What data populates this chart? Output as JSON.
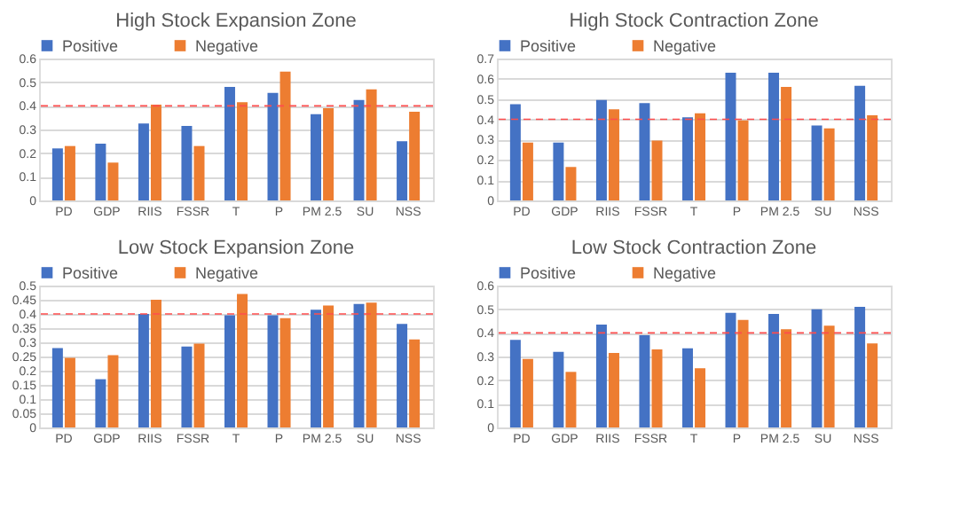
{
  "chart_data": [
    {
      "type": "bar",
      "title": "High Stock Expansion Zone",
      "categories": [
        "PD",
        "GDP",
        "RIIS",
        "FSSR",
        "T",
        "P",
        "PM 2.5",
        "SU",
        "NSS"
      ],
      "series": [
        {
          "name": "Positive",
          "color": "#4472c4",
          "values": [
            0.22,
            0.24,
            0.325,
            0.315,
            0.48,
            0.455,
            0.365,
            0.425,
            0.25
          ]
        },
        {
          "name": "Negative",
          "color": "#ed7d31",
          "values": [
            0.23,
            0.16,
            0.405,
            0.23,
            0.415,
            0.545,
            0.39,
            0.47,
            0.375
          ]
        }
      ],
      "ylim": [
        0,
        0.6
      ],
      "yticks": [
        0,
        0.1,
        0.2,
        0.3,
        0.4,
        0.5,
        0.6
      ],
      "grid": "y",
      "legend": "top",
      "ref_lines": [
        {
          "axis": "y",
          "value": 0.4,
          "color": "#ff4d4d",
          "line_style": "dashed"
        }
      ]
    },
    {
      "type": "bar",
      "title": "High Stock Contraction Zone",
      "categories": [
        "PD",
        "GDP",
        "RIIS",
        "FSSR",
        "T",
        "P",
        "PM 2.5",
        "SU",
        "NSS"
      ],
      "series": [
        {
          "name": "Positive",
          "color": "#4472c4",
          "values": [
            0.475,
            0.285,
            0.495,
            0.48,
            0.41,
            0.63,
            0.63,
            0.37,
            0.565
          ]
        },
        {
          "name": "Negative",
          "color": "#ed7d31",
          "values": [
            0.285,
            0.165,
            0.45,
            0.295,
            0.43,
            0.395,
            0.56,
            0.355,
            0.42
          ]
        }
      ],
      "ylim": [
        0,
        0.7
      ],
      "yticks": [
        0,
        0.1,
        0.2,
        0.3,
        0.4,
        0.5,
        0.6,
        0.7
      ],
      "grid": "y",
      "legend": "top",
      "ref_lines": [
        {
          "axis": "y",
          "value": 0.4,
          "color": "#ff4d4d",
          "line_style": "dashed"
        }
      ]
    },
    {
      "type": "bar",
      "title": "Low Stock Expansion Zone",
      "categories": [
        "PD",
        "GDP",
        "RIIS",
        "FSSR",
        "T",
        "P",
        "PM 2.5",
        "SU",
        "NSS"
      ],
      "series": [
        {
          "name": "Positive",
          "color": "#4472c4",
          "values": [
            0.28,
            0.17,
            0.4,
            0.285,
            0.395,
            0.395,
            0.415,
            0.435,
            0.365
          ]
        },
        {
          "name": "Negative",
          "color": "#ed7d31",
          "values": [
            0.245,
            0.255,
            0.45,
            0.295,
            0.47,
            0.385,
            0.43,
            0.44,
            0.31
          ]
        }
      ],
      "ylim": [
        0,
        0.5
      ],
      "yticks": [
        0,
        0.05,
        0.1,
        0.15,
        0.2,
        0.25,
        0.3,
        0.35,
        0.4,
        0.45,
        0.5
      ],
      "grid": "y",
      "legend": "top",
      "ref_lines": [
        {
          "axis": "y",
          "value": 0.4,
          "color": "#ff4d4d",
          "line_style": "dashed"
        }
      ]
    },
    {
      "type": "bar",
      "title": "Low Stock Contraction Zone",
      "categories": [
        "PD",
        "GDP",
        "RIIS",
        "FSSR",
        "T",
        "P",
        "PM 2.5",
        "SU",
        "NSS"
      ],
      "series": [
        {
          "name": "Positive",
          "color": "#4472c4",
          "values": [
            0.37,
            0.32,
            0.435,
            0.39,
            0.335,
            0.485,
            0.48,
            0.5,
            0.51
          ]
        },
        {
          "name": "Negative",
          "color": "#ed7d31",
          "values": [
            0.29,
            0.235,
            0.315,
            0.33,
            0.25,
            0.455,
            0.415,
            0.43,
            0.355
          ]
        }
      ],
      "ylim": [
        0,
        0.6
      ],
      "yticks": [
        0,
        0.1,
        0.2,
        0.3,
        0.4,
        0.5,
        0.6
      ],
      "grid": "y",
      "legend": "top",
      "ref_lines": [
        {
          "axis": "y",
          "value": 0.4,
          "color": "#ff4d4d",
          "line_style": "dashed"
        }
      ]
    }
  ]
}
